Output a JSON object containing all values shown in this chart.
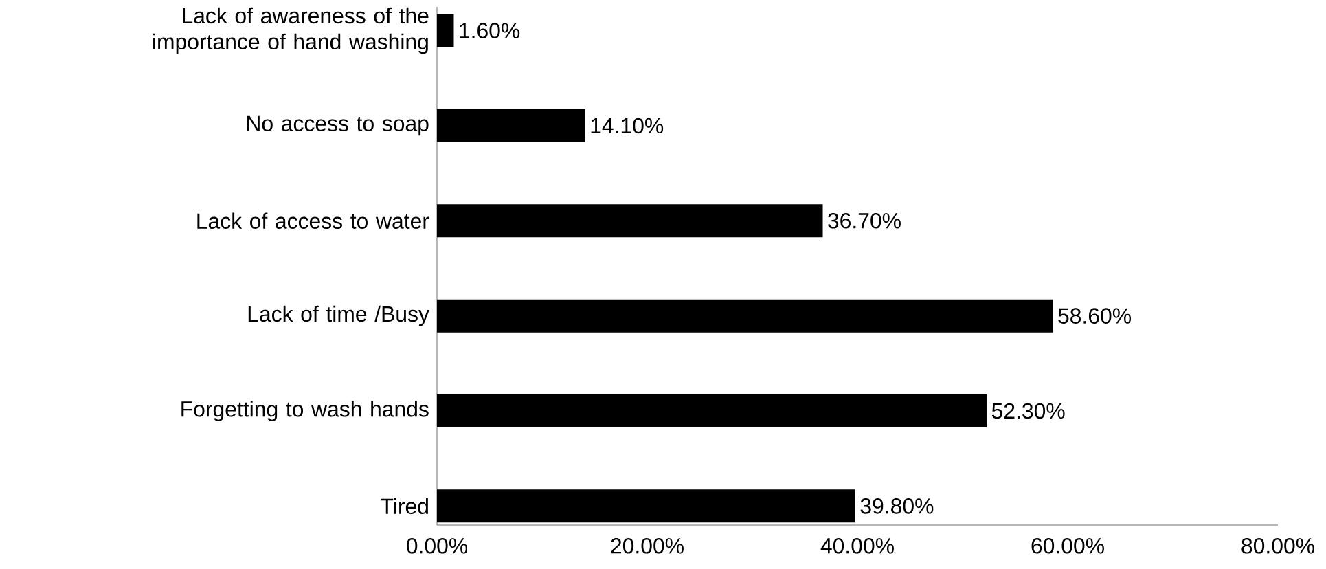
{
  "chart_data": {
    "type": "bar",
    "orientation": "horizontal",
    "categories": [
      "Lack of awareness of the importance of hand washing",
      "No access to soap",
      "Lack of access to water",
      "Lack of time /Busy",
      "Forgetting to wash hands",
      "Tired"
    ],
    "values": [
      1.6,
      14.1,
      36.7,
      58.6,
      52.3,
      39.8
    ],
    "value_labels": [
      "1.60%",
      "14.10%",
      "36.70%",
      "58.60%",
      "52.30%",
      "39.80%"
    ],
    "color": "#000000",
    "xlim": [
      0,
      80
    ],
    "xticks": [
      {
        "value": 0,
        "label": "0.00%"
      },
      {
        "value": 20,
        "label": "20.00%"
      },
      {
        "value": 40,
        "label": "40.00%"
      },
      {
        "value": 60,
        "label": "60.00%"
      },
      {
        "value": 80,
        "label": "80.00%"
      }
    ]
  }
}
